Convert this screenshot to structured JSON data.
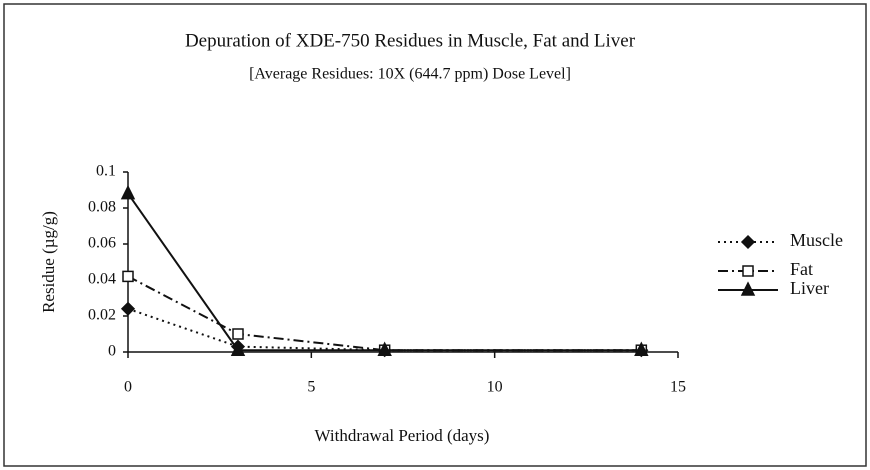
{
  "chart_data": {
    "type": "line",
    "title": "Depuration of XDE-750 Residues in Muscle, Fat and Liver",
    "subtitle": "[Average Residues: 10X (644.7 ppm) Dose Level]",
    "xlabel": "Withdrawal Period (days)",
    "ylabel": "Residue (µg/g)",
    "x": [
      0,
      3,
      7,
      14
    ],
    "series": [
      {
        "name": "Muscle",
        "color": "#111111",
        "marker": "diamond",
        "linestyle": "dotted",
        "values": [
          0.024,
          0.003,
          0.001,
          0.001
        ]
      },
      {
        "name": "Fat",
        "color": "#111111",
        "marker": "square-open",
        "linestyle": "dashdot",
        "values": [
          0.042,
          0.01,
          0.001,
          0.001
        ]
      },
      {
        "name": "Liver",
        "color": "#111111",
        "marker": "triangle",
        "linestyle": "solid",
        "values": [
          0.088,
          0.001,
          0.001,
          0.001
        ]
      }
    ],
    "xlim": [
      0,
      15
    ],
    "xticks": [
      0,
      5,
      10,
      15
    ],
    "ylim": [
      0,
      0.1
    ],
    "yticks": [
      0,
      0.02,
      0.04,
      0.06,
      0.08,
      0.1
    ],
    "grid": false,
    "legend": "right"
  }
}
